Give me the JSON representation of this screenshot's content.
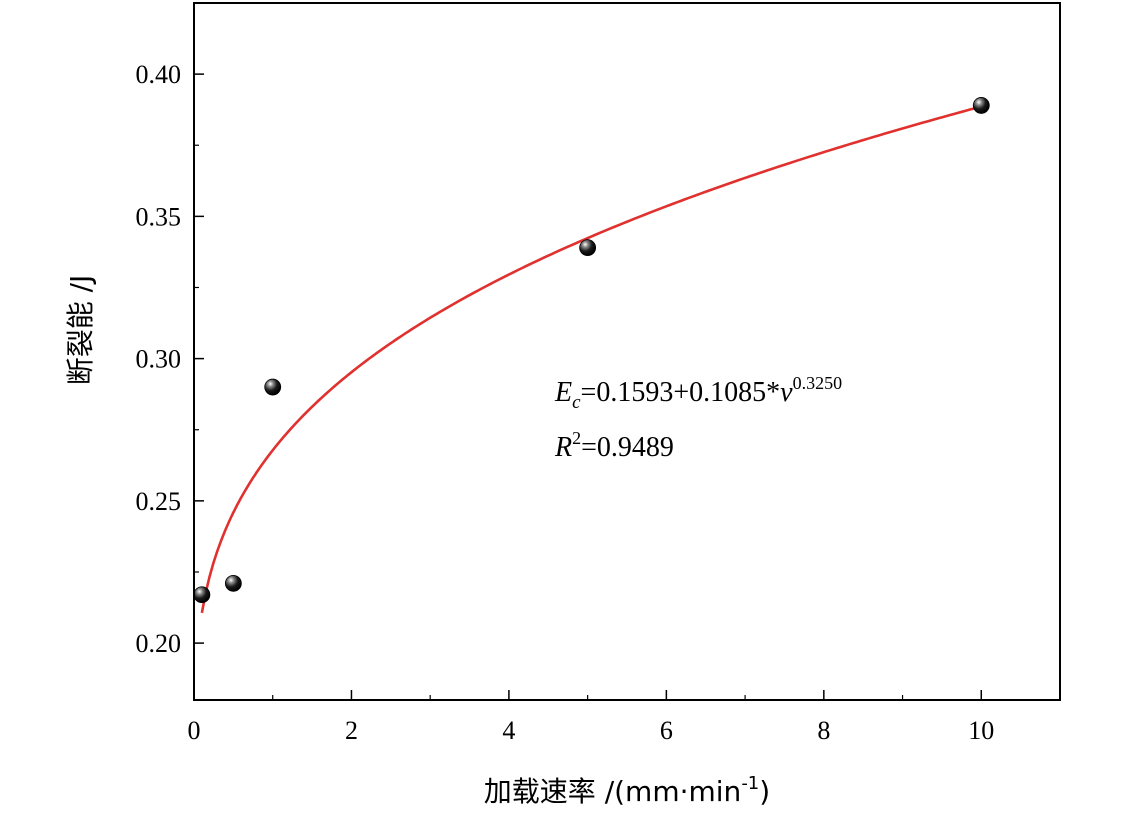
{
  "chart_data": {
    "type": "scatter",
    "xlabel": "加载速率  /(mm·min",
    "xlabel_sup": "-1",
    "xlabel_end": ")",
    "ylabel": "断裂能 /J",
    "xlim": [
      0,
      11
    ],
    "ylim": [
      0.18,
      0.425
    ],
    "x_ticks": [
      0,
      2,
      4,
      6,
      8,
      10
    ],
    "y_ticks": [
      0.2,
      0.25,
      0.3,
      0.35,
      0.4
    ],
    "x_tick_labels": [
      "0",
      "2",
      "4",
      "6",
      "8",
      "10"
    ],
    "y_tick_labels": [
      "0.20",
      "0.25",
      "0.30",
      "0.35",
      "0.40"
    ],
    "grid": false,
    "series": [
      {
        "kind": "points",
        "x": [
          0.1,
          0.5,
          1,
          5,
          10
        ],
        "y": [
          0.217,
          0.221,
          0.29,
          0.339,
          0.389
        ]
      },
      {
        "kind": "fit-curve",
        "color": "#e0312f",
        "x_range": [
          0.1,
          10
        ],
        "equation": {
          "a": 0.1593,
          "b": 0.1085,
          "c": 0.325
        }
      }
    ],
    "annotation": {
      "eq_E": "E",
      "eq_sub": "c",
      "eq_body": "=0.1593+0.1085*",
      "eq_v": "v",
      "eq_exp": "0.3250",
      "r2_R": "R",
      "r2_sup": "2",
      "r2_body": "=0.9489"
    }
  }
}
